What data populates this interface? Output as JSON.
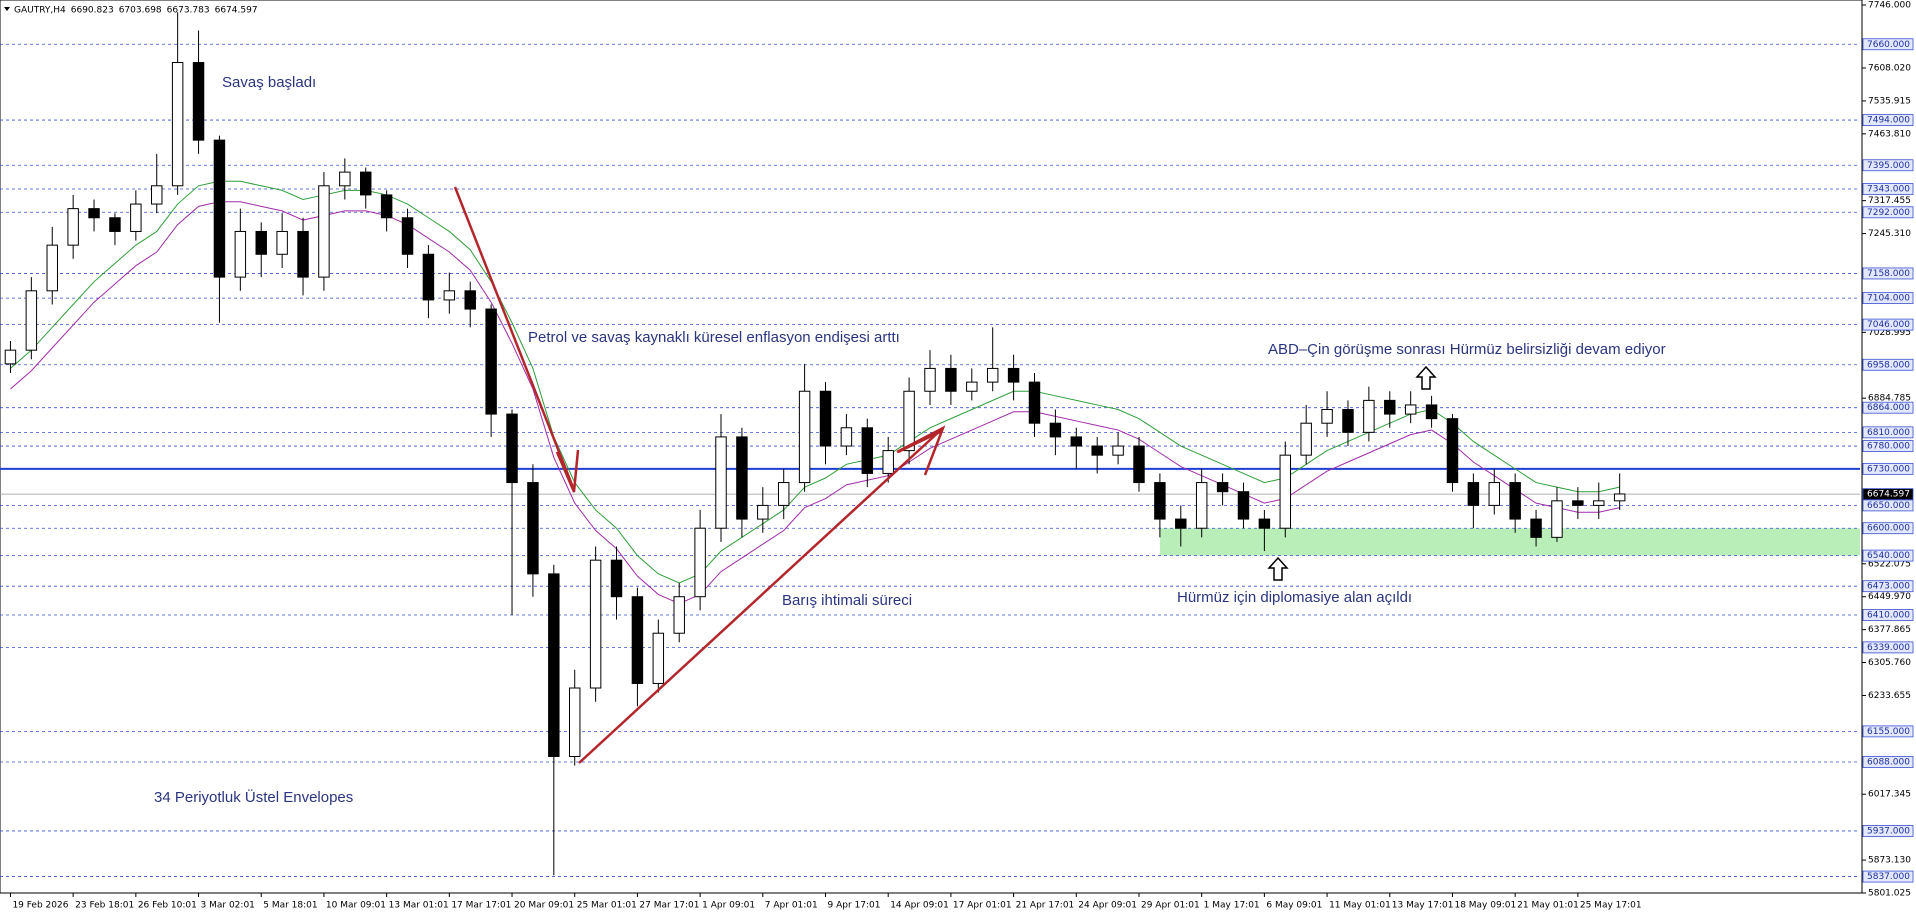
{
  "chart_data": {
    "type": "candlestick",
    "title": "GAUTRY,H4",
    "header_ohlc": [
      6690.823,
      6703.698,
      6673.783,
      6674.597
    ],
    "xlim": [
      -0.5,
      88.5
    ],
    "xticks": [
      {
        "value": 0,
        "label": "19 Feb 2026"
      },
      {
        "value": 3,
        "label": "23 Feb 18:01"
      },
      {
        "value": 6,
        "label": "26 Feb 10:01"
      },
      {
        "value": 9,
        "label": "3 Mar 02:01"
      },
      {
        "value": 12,
        "label": "5 Mar 18:01"
      },
      {
        "value": 15,
        "label": "10 Mar 09:01"
      },
      {
        "value": 18,
        "label": "13 Mar 01:01"
      },
      {
        "value": 21,
        "label": "17 Mar 17:01"
      },
      {
        "value": 24,
        "label": "20 Mar 09:01"
      },
      {
        "value": 27,
        "label": "25 Mar 01:01"
      },
      {
        "value": 30,
        "label": "27 Mar 17:01"
      },
      {
        "value": 33,
        "label": "1 Apr 09:01"
      },
      {
        "value": 36,
        "label": "7 Apr 01:01"
      },
      {
        "value": 39,
        "label": "9 Apr 17:01"
      },
      {
        "value": 42,
        "label": "14 Apr 09:01"
      },
      {
        "value": 45,
        "label": "17 Apr 01:01"
      },
      {
        "value": 48,
        "label": "21 Apr 17:01"
      },
      {
        "value": 51,
        "label": "24 Apr 09:01"
      },
      {
        "value": 54,
        "label": "29 Apr 01:01"
      },
      {
        "value": 57,
        "label": "1 May 17:01"
      },
      {
        "value": 60,
        "label": "6 May 09:01"
      },
      {
        "value": 63,
        "label": "11 May 01:01"
      },
      {
        "value": 66,
        "label": "13 May 17:01"
      },
      {
        "value": 69,
        "label": "18 May 09:01"
      },
      {
        "value": 72,
        "label": "21 May 01:01"
      },
      {
        "value": 75,
        "label": "25 May 17:01"
      }
    ],
    "open": [
      6960,
      6990,
      7120,
      7220,
      7300,
      7280,
      7250,
      7310,
      7350,
      7620,
      7450,
      7150,
      7250,
      7200,
      7250,
      7150,
      7350,
      7380,
      7330,
      7280,
      7200,
      7100,
      7120,
      7080,
      6850,
      6700,
      6500,
      6100,
      6250,
      6530,
      6450,
      6260,
      6370,
      6450,
      6600,
      6800,
      6620,
      6650,
      6700,
      6900,
      6780,
      6820,
      6720,
      6770,
      6900,
      6950,
      6900,
      6920,
      6950,
      6920,
      6830,
      6800,
      6780,
      6760,
      6780,
      6700,
      6620,
      6600,
      6700,
      6680,
      6620,
      6600,
      6760,
      6830,
      6860,
      6810,
      6880,
      6850,
      6870,
      6840,
      6700,
      6650,
      6700,
      6620,
      6580,
      6660,
      6650,
      6660
    ],
    "high": [
      7010,
      7150,
      7260,
      7330,
      7320,
      7290,
      7340,
      7420,
      7730,
      7690,
      7460,
      7300,
      7270,
      7290,
      7280,
      7380,
      7410,
      7390,
      7340,
      7300,
      7220,
      7160,
      7140,
      7090,
      6860,
      6740,
      6520,
      6290,
      6560,
      6560,
      6470,
      6400,
      6480,
      6640,
      6850,
      6820,
      6690,
      6730,
      6960,
      6920,
      6850,
      6840,
      6800,
      6930,
      6990,
      6980,
      6950,
      7040,
      6980,
      6940,
      6860,
      6820,
      6800,
      6810,
      6800,
      6720,
      6650,
      6730,
      6720,
      6700,
      6640,
      6790,
      6870,
      6900,
      6880,
      6910,
      6900,
      6900,
      6890,
      6850,
      6720,
      6730,
      6720,
      6640,
      6690,
      6690,
      6700,
      6720
    ],
    "low": [
      6940,
      6970,
      7090,
      7190,
      7250,
      7220,
      7230,
      7290,
      7330,
      7420,
      7050,
      7120,
      7150,
      7170,
      7110,
      7120,
      7320,
      7300,
      7250,
      7170,
      7060,
      7070,
      7040,
      6800,
      6410,
      6450,
      5840,
      6080,
      6220,
      6400,
      6210,
      6240,
      6350,
      6420,
      6570,
      6580,
      6590,
      6620,
      6680,
      6740,
      6760,
      6690,
      6700,
      6740,
      6870,
      6870,
      6880,
      6900,
      6880,
      6800,
      6760,
      6730,
      6720,
      6740,
      6680,
      6580,
      6560,
      6580,
      6650,
      6600,
      6550,
      6580,
      6740,
      6800,
      6780,
      6790,
      6820,
      6830,
      6820,
      6680,
      6600,
      6630,
      6590,
      6560,
      6570,
      6620,
      6620,
      6640
    ],
    "close": [
      6990,
      7120,
      7220,
      7300,
      7280,
      7250,
      7310,
      7350,
      7620,
      7450,
      7150,
      7250,
      7200,
      7250,
      7150,
      7350,
      7380,
      7330,
      7280,
      7200,
      7100,
      7120,
      7080,
      6850,
      6700,
      6500,
      6100,
      6250,
      6530,
      6450,
      6260,
      6370,
      6450,
      6600,
      6800,
      6620,
      6650,
      6700,
      6900,
      6780,
      6820,
      6720,
      6770,
      6900,
      6950,
      6900,
      6920,
      6950,
      6920,
      6830,
      6800,
      6780,
      6760,
      6780,
      6700,
      6620,
      6600,
      6700,
      6680,
      6620,
      6600,
      6760,
      6830,
      6860,
      6810,
      6880,
      6850,
      6870,
      6840,
      6700,
      6650,
      6700,
      6620,
      6580,
      6660,
      6650,
      6660,
      6675
    ],
    "up_color": "#ffffff",
    "down_color": "#000000",
    "envelopes": [
      {
        "color": "#2f9e3a",
        "values": [
          6950,
          6990,
          7040,
          7090,
          7140,
          7180,
          7220,
          7250,
          7310,
          7350,
          7360,
          7360,
          7350,
          7340,
          7320,
          7330,
          7340,
          7340,
          7330,
          7310,
          7280,
          7250,
          7210,
          7140,
          7050,
          6950,
          6800,
          6700,
          6640,
          6600,
          6540,
          6500,
          6480,
          6500,
          6550,
          6580,
          6610,
          6640,
          6690,
          6710,
          6740,
          6750,
          6760,
          6790,
          6820,
          6840,
          6860,
          6880,
          6900,
          6900,
          6890,
          6880,
          6870,
          6860,
          6840,
          6810,
          6780,
          6760,
          6740,
          6720,
          6700,
          6710,
          6740,
          6770,
          6790,
          6810,
          6830,
          6850,
          6860,
          6830,
          6790,
          6760,
          6730,
          6700,
          6690,
          6680,
          6680,
          6690
        ]
      },
      {
        "color": "#a02ca8",
        "values": [
          6905,
          6945,
          6995,
          7045,
          7095,
          7135,
          7175,
          7205,
          7265,
          7305,
          7315,
          7315,
          7305,
          7295,
          7275,
          7285,
          7295,
          7295,
          7285,
          7265,
          7235,
          7205,
          7165,
          7095,
          7005,
          6905,
          6755,
          6655,
          6595,
          6555,
          6495,
          6455,
          6435,
          6455,
          6505,
          6535,
          6565,
          6595,
          6645,
          6665,
          6695,
          6705,
          6715,
          6745,
          6775,
          6795,
          6815,
          6835,
          6855,
          6855,
          6845,
          6835,
          6825,
          6815,
          6795,
          6765,
          6735,
          6715,
          6695,
          6675,
          6655,
          6665,
          6695,
          6725,
          6745,
          6765,
          6785,
          6805,
          6815,
          6785,
          6745,
          6715,
          6685,
          6655,
          6645,
          6635,
          6635,
          6645
        ]
      }
    ],
    "ylim": [
      5801.025,
      7746
    ],
    "yticks": [
      {
        "value": 7746,
        "label": "7746.000"
      },
      {
        "value": 7608.02,
        "label": "7608.020"
      },
      {
        "value": 7535.915,
        "label": "7535.915"
      },
      {
        "value": 7463.81,
        "label": "7463.810"
      },
      {
        "value": 7317.455,
        "label": "7317.455"
      },
      {
        "value": 7245.31,
        "label": "7245.310"
      },
      {
        "value": 7028.995,
        "label": "7028.995"
      },
      {
        "value": 6884.785,
        "label": "6884.785"
      },
      {
        "value": 6522.075,
        "label": "6522.075"
      },
      {
        "value": 6449.97,
        "label": "6449.970"
      },
      {
        "value": 6377.865,
        "label": "6377.865"
      },
      {
        "value": 6305.76,
        "label": "6305.760"
      },
      {
        "value": 6233.655,
        "label": "6233.655"
      },
      {
        "value": 6017.345,
        "label": "6017.345"
      },
      {
        "value": 5873.13,
        "label": "5873.130"
      },
      {
        "value": 5801.025,
        "label": "5801.025"
      }
    ],
    "levels": [
      {
        "value": 7660,
        "label": "7660.000"
      },
      {
        "value": 7494,
        "label": "7494.000"
      },
      {
        "value": 7395,
        "label": "7395.000"
      },
      {
        "value": 7343,
        "label": "7343.000"
      },
      {
        "value": 7292,
        "label": "7292.000"
      },
      {
        "value": 7158,
        "label": "7158.000"
      },
      {
        "value": 7104,
        "label": "7104.000"
      },
      {
        "value": 7046,
        "label": "7046.000"
      },
      {
        "value": 6958,
        "label": "6958.000"
      },
      {
        "value": 6864,
        "label": "6864.000"
      },
      {
        "value": 6810,
        "label": "6810.000"
      },
      {
        "value": 6780,
        "label": "6780.000"
      },
      {
        "value": 6650,
        "label": "6650.000"
      },
      {
        "value": 6600,
        "label": "6600.000"
      },
      {
        "value": 6540,
        "label": "6540.000"
      },
      {
        "value": 6473,
        "label": "6473.000"
      },
      {
        "value": 6410,
        "label": "6410.000"
      },
      {
        "value": 6339,
        "label": "6339.000"
      },
      {
        "value": 6155,
        "label": "6155.000"
      },
      {
        "value": 6088,
        "label": "6088.000"
      },
      {
        "value": 5937,
        "label": "5937.000"
      },
      {
        "value": 5837,
        "label": "5837.000"
      }
    ],
    "key_level": {
      "value": 6730,
      "label": "6730.000",
      "color": "#1e3fd6"
    },
    "current_price": {
      "value": 6674.597,
      "label": "6674.597"
    },
    "zone": {
      "from": 55,
      "ylim": [
        6540,
        6600
      ],
      "color": "#b9eeb9"
    },
    "annotations": [
      "Savaş başladı",
      "Petrol ve savaş kaynaklı küresel enflasyon endişesi arttı",
      "Barış ihtimali süreci",
      "ABD–Çin görüşme sonrası Hürmüz belirsizliği devam ediyor",
      "Hürmüz için diplomasiye alan açıldı",
      "34 Periyotluk Üstel Envelopes"
    ]
  }
}
